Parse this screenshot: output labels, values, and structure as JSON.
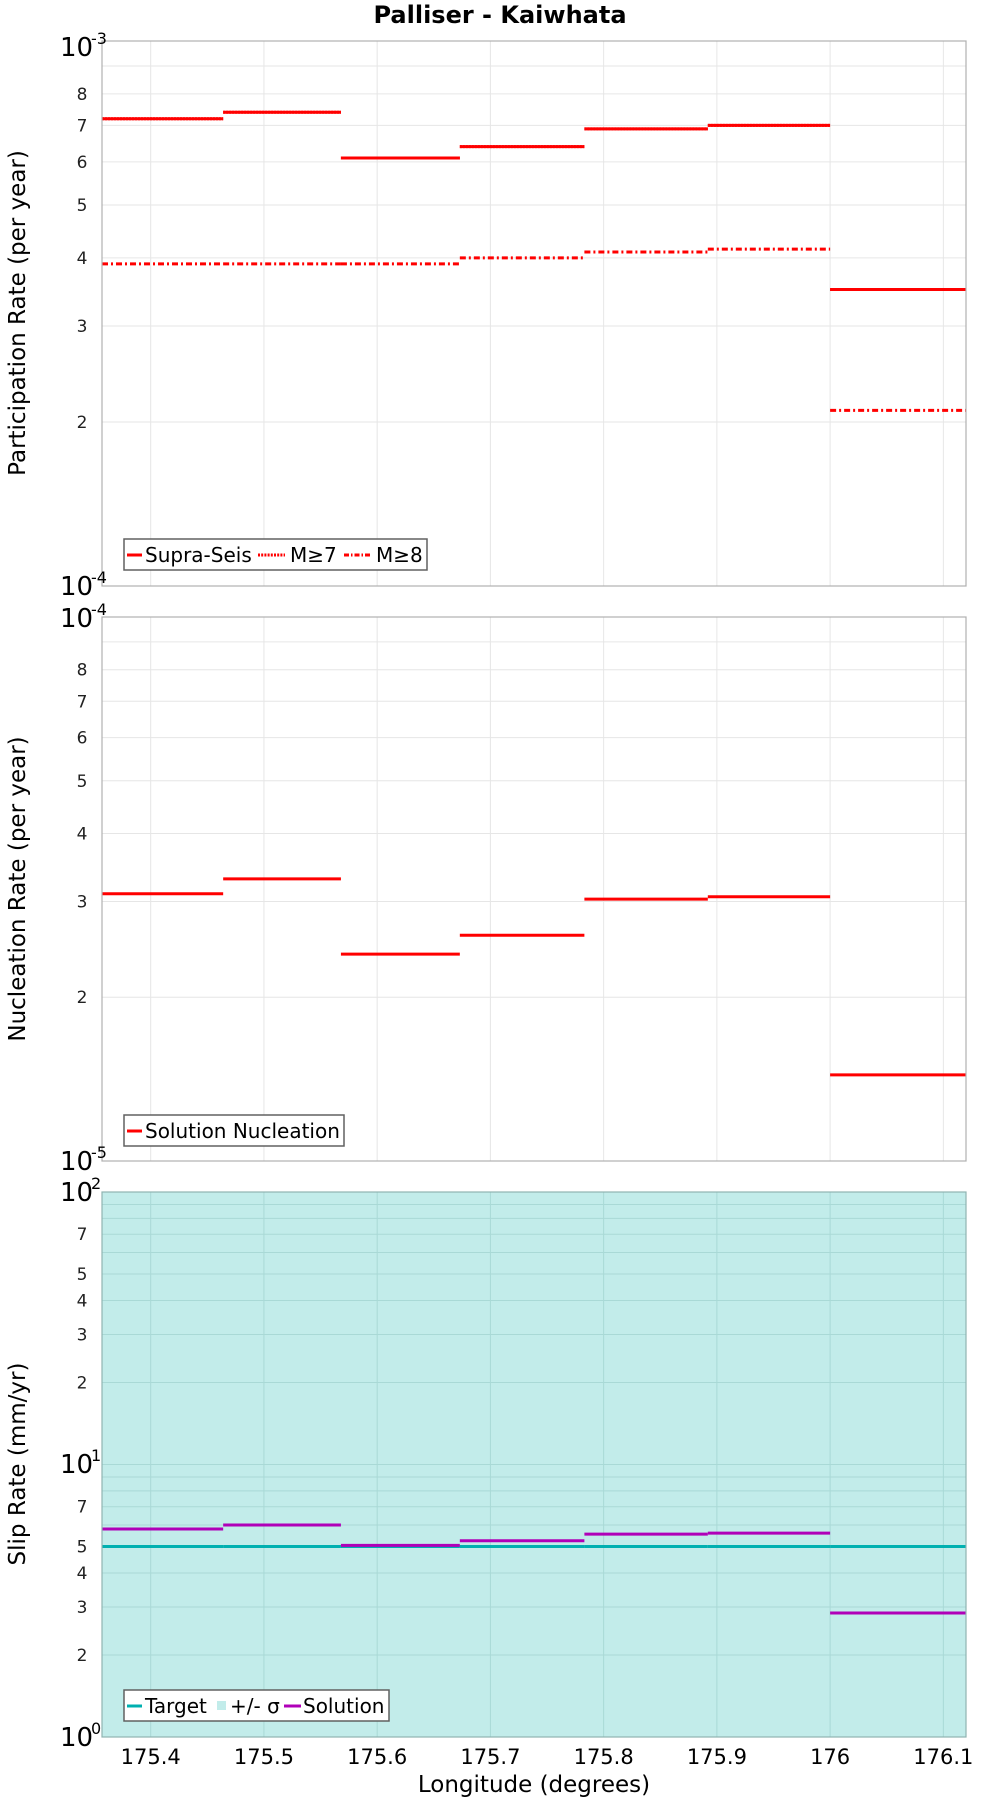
{
  "title": "Palliser - Kaiwhata",
  "colors": {
    "red": "#ff0000",
    "teal": "#00b0b0",
    "purple": "#b000b8",
    "sigma_fill": "#c2ecea",
    "grid": "#e6e6e6",
    "grid_teal": "#a9d9d6",
    "frame": "#aaaaaa"
  },
  "chart_data": [
    {
      "type": "line",
      "subtype": "step",
      "title": "Palliser - Kaiwhata",
      "xlabel": "Longitude (degrees)",
      "ylabel": "Participation Rate (per year)",
      "yscale": "log",
      "ylim": [
        0.0001,
        0.001
      ],
      "y_decade_labels": [
        {
          "base": "10",
          "exp": "-3"
        },
        {
          "base": "10",
          "exp": "-4"
        }
      ],
      "y_minor_labels": [
        "8",
        "7",
        "6",
        "5",
        "4",
        "3",
        "2"
      ],
      "xlim": [
        175.357,
        176.12
      ],
      "x_ticks": [
        "175.4",
        "175.5",
        "175.6",
        "175.7",
        "175.8",
        "175.9",
        "176",
        "176.1"
      ],
      "segment_edges": [
        175.357,
        175.464,
        175.568,
        175.673,
        175.783,
        175.892,
        176.0,
        176.12
      ],
      "series": [
        {
          "name": "Supra-Seis",
          "style": "solid",
          "values": [
            0.00072,
            0.00074,
            0.00061,
            0.00064,
            0.00069,
            0.0007,
            0.00035
          ]
        },
        {
          "name": "M≥7",
          "style": "dotted",
          "values": [
            0.00072,
            0.00074,
            0.00061,
            0.00064,
            0.00069,
            0.0007,
            0.00035
          ]
        },
        {
          "name": "M≥8",
          "style": "dashdot",
          "values": [
            0.00039,
            0.00039,
            0.00039,
            0.0004,
            0.00041,
            0.000415,
            0.00021
          ]
        }
      ],
      "legend": {
        "position": "lower-left",
        "entries": [
          "Supra-Seis",
          "M≥7",
          "M≥8"
        ]
      },
      "grid": true
    },
    {
      "type": "line",
      "subtype": "step",
      "ylabel": "Nucleation Rate (per year)",
      "yscale": "log",
      "ylim": [
        1e-05,
        0.0001
      ],
      "y_decade_labels": [
        {
          "base": "10",
          "exp": "-4"
        },
        {
          "base": "10",
          "exp": "-5"
        }
      ],
      "y_minor_labels": [
        "8",
        "7",
        "6",
        "5",
        "4",
        "3",
        "2"
      ],
      "segment_edges": [
        175.357,
        175.464,
        175.568,
        175.673,
        175.783,
        175.892,
        176.0,
        176.12
      ],
      "series": [
        {
          "name": "Solution Nucleation",
          "style": "solid",
          "values": [
            3.1e-05,
            3.3e-05,
            2.4e-05,
            2.6e-05,
            3.03e-05,
            3.06e-05,
            1.44e-05
          ]
        }
      ],
      "legend": {
        "position": "lower-left",
        "entries": [
          "Solution Nucleation"
        ]
      },
      "grid": true
    },
    {
      "type": "line",
      "subtype": "step",
      "xlabel": "Longitude (degrees)",
      "ylabel": "Slip Rate (mm/yr)",
      "yscale": "log",
      "ylim": [
        1,
        100
      ],
      "y_decade_labels": [
        {
          "base": "10",
          "exp": "2"
        },
        {
          "base": "10",
          "exp": "1"
        },
        {
          "base": "10",
          "exp": "0"
        }
      ],
      "y_minor_labels_upper": [
        "7",
        "5",
        "4",
        "3",
        "2"
      ],
      "y_minor_labels_lower": [
        "7",
        "5",
        "4",
        "3",
        "2"
      ],
      "segment_edges": [
        175.357,
        175.464,
        175.568,
        175.673,
        175.783,
        175.892,
        176.0,
        176.12
      ],
      "series": [
        {
          "name": "Target",
          "style": "solid",
          "values": [
            5.0,
            5.0,
            5.0,
            5.0,
            5.0,
            5.0,
            5.0
          ]
        },
        {
          "name": "+/- σ",
          "style": "fill",
          "range": [
            1,
            100
          ]
        },
        {
          "name": "Solution",
          "style": "solid",
          "values": [
            5.8,
            6.0,
            5.05,
            5.25,
            5.55,
            5.6,
            2.85
          ]
        }
      ],
      "legend": {
        "position": "lower-left",
        "entries": [
          "Target",
          "+/- σ",
          "Solution"
        ]
      },
      "grid": true
    }
  ],
  "panels": {
    "p1": {
      "ylabel": "Participation Rate (per year)",
      "top_dec": {
        "base": "10",
        "exp": "-3"
      },
      "bot_dec": {
        "base": "10",
        "exp": "-4"
      },
      "legend": [
        "Supra-Seis",
        "M≥7",
        "M≥8"
      ]
    },
    "p2": {
      "ylabel": "Nucleation Rate (per year)",
      "top_dec": {
        "base": "10",
        "exp": "-4"
      },
      "bot_dec": {
        "base": "10",
        "exp": "-5"
      },
      "legend": [
        "Solution Nucleation"
      ]
    },
    "p3": {
      "ylabel": "Slip Rate (mm/yr)",
      "top_dec": {
        "base": "10",
        "exp": "2"
      },
      "mid_dec": {
        "base": "10",
        "exp": "1"
      },
      "bot_dec": {
        "base": "10",
        "exp": "0"
      },
      "legend": [
        "Target",
        "+/- σ",
        "Solution"
      ]
    }
  },
  "xaxis": {
    "label": "Longitude (degrees)",
    "ticks": [
      "175.4",
      "175.5",
      "175.6",
      "175.7",
      "175.8",
      "175.9",
      "176",
      "176.1"
    ]
  }
}
